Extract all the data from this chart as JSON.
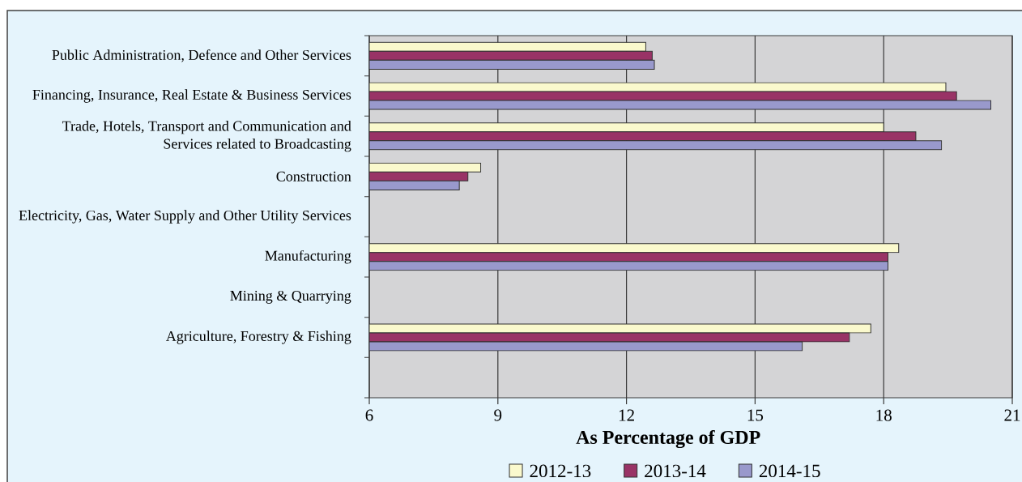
{
  "chart_data": {
    "type": "bar",
    "orientation": "horizontal",
    "categories": [
      "Public Administration, Defence and Other Services",
      "Financing, Insurance, Real Estate & Business Services",
      "Trade, Hotels, Transport and Communication and Services related to Broadcasting",
      "Construction",
      "Electricity, Gas, Water Supply and Other Utility Services",
      "Manufacturing",
      "Mining & Quarrying",
      "Agriculture, Forestry & Fishing",
      null
    ],
    "series": [
      {
        "name": "2012-13",
        "color": "#faf9cd",
        "values": [
          12.45,
          19.45,
          18.0,
          8.6,
          null,
          18.35,
          null,
          17.7,
          null
        ]
      },
      {
        "name": "2013-14",
        "color": "#993366",
        "values": [
          12.6,
          19.7,
          18.75,
          8.3,
          null,
          18.1,
          null,
          17.2,
          null
        ]
      },
      {
        "name": "2014-15",
        "color": "#9999cc",
        "values": [
          12.65,
          20.5,
          19.35,
          8.1,
          null,
          18.1,
          null,
          16.1,
          null
        ]
      }
    ],
    "xlabel": "As Percentage of GDP",
    "xlim": [
      6,
      21
    ],
    "xticks": [
      6,
      9,
      12,
      15,
      18,
      21
    ],
    "grid": "x",
    "legend": "bottom"
  }
}
